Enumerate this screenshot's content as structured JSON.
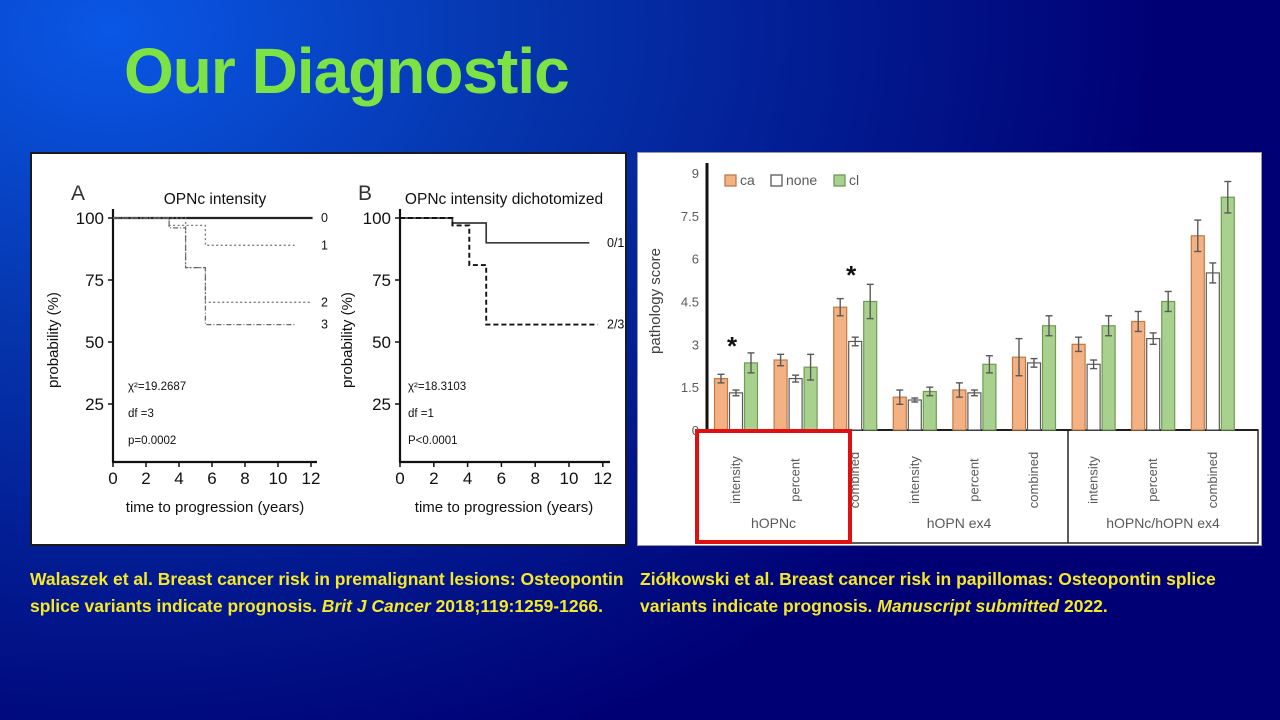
{
  "slide": {
    "title": "Our Diagnostic"
  },
  "citations": {
    "left": {
      "normal1": "Walaszek et al. Breast cancer risk in premalignant lesions: Osteopontin splice variants indicate prognosis. ",
      "italic": "Brit J Cancer",
      "normal2": " 2018;119:1259-1266."
    },
    "right": {
      "normal1": "Ziółkowski et al. Breast cancer risk in papillomas: Osteopontin splice variants indicate prognosis. ",
      "italic": "Manuscript submitted",
      "normal2": " 2022."
    }
  },
  "chart_data": [
    {
      "id": "kmA",
      "type": "line",
      "subtype": "kaplan-meier",
      "panel_label": "A",
      "title": "OPNc intensity",
      "xlabel": "time to progression (years)",
      "ylabel": "probability (%)",
      "xticks": [
        0,
        2,
        4,
        6,
        8,
        10,
        12
      ],
      "yticks": [
        100,
        75,
        50,
        25
      ],
      "xlim": [
        0,
        12.3
      ],
      "ylim": [
        0,
        100
      ],
      "stats": [
        "χ²=19.2687",
        "df =3",
        "p=0.0002"
      ],
      "series": [
        {
          "name": "0",
          "style": "solid-black",
          "points": [
            [
              0,
              100
            ],
            [
              12.1,
              100
            ]
          ]
        },
        {
          "name": "1",
          "style": "dotted-gray",
          "points": [
            [
              0,
              100
            ],
            [
              3.4,
              100
            ],
            [
              3.4,
              97
            ],
            [
              5.6,
              97
            ],
            [
              5.6,
              89
            ],
            [
              11.0,
              89
            ]
          ]
        },
        {
          "name": "2",
          "style": "dotted-gray",
          "points": [
            [
              0,
              100
            ],
            [
              4.4,
              100
            ],
            [
              4.4,
              80
            ],
            [
              5.6,
              80
            ],
            [
              5.6,
              66
            ],
            [
              12.0,
              66
            ]
          ]
        },
        {
          "name": "3",
          "style": "dashdot-gray",
          "points": [
            [
              0,
              100
            ],
            [
              3.4,
              100
            ],
            [
              3.4,
              96
            ],
            [
              4.4,
              96
            ],
            [
              4.4,
              80
            ],
            [
              5.6,
              80
            ],
            [
              5.6,
              57
            ],
            [
              11.0,
              57
            ]
          ]
        }
      ]
    },
    {
      "id": "kmB",
      "type": "line",
      "subtype": "kaplan-meier",
      "panel_label": "B",
      "title": "OPNc intensity dichotomized",
      "xlabel": "time to progression (years)",
      "ylabel": "probability (%)",
      "xticks": [
        0,
        2,
        4,
        6,
        8,
        10,
        12
      ],
      "yticks": [
        100,
        75,
        50,
        25
      ],
      "xlim": [
        0,
        12.3
      ],
      "ylim": [
        0,
        100
      ],
      "stats": [
        "χ²=18.3103",
        "df =1",
        "P<0.0001"
      ],
      "series": [
        {
          "name": "0/1",
          "style": "solid-dark",
          "points": [
            [
              0,
              100
            ],
            [
              3.1,
              100
            ],
            [
              3.1,
              98
            ],
            [
              5.1,
              98
            ],
            [
              5.1,
              90
            ],
            [
              11.2,
              90
            ]
          ]
        },
        {
          "name": "2/3",
          "style": "dashed-black",
          "points": [
            [
              0,
              100
            ],
            [
              3.1,
              100
            ],
            [
              3.1,
              97
            ],
            [
              4.1,
              97
            ],
            [
              4.1,
              81
            ],
            [
              5.1,
              81
            ],
            [
              5.1,
              57
            ],
            [
              11.7,
              57
            ]
          ]
        }
      ]
    },
    {
      "id": "bars",
      "type": "bar",
      "ylabel": "pathology score",
      "yticks": [
        0,
        1.5,
        3,
        4.5,
        6,
        7.5,
        9
      ],
      "ylim": [
        0,
        9
      ],
      "legend": [
        {
          "name": "ca",
          "fill": "#F4B183",
          "stroke": "#C07A45"
        },
        {
          "name": "none",
          "fill": "#FFFFFF",
          "stroke": "#595959"
        },
        {
          "name": "cl",
          "fill": "#A9D18E",
          "stroke": "#6F9B53"
        }
      ],
      "highlight_color": "#E01010",
      "sections": [
        {
          "name": "hOPNc",
          "highlighted": true,
          "groups": [
            {
              "label": "intensity",
              "ca": 1.8,
              "none": 1.3,
              "cl": 2.35,
              "ca_err": 0.15,
              "none_err": 0.1,
              "cl_err": 0.35,
              "star_y": 2.9
            },
            {
              "label": "percent",
              "ca": 2.45,
              "none": 1.8,
              "cl": 2.2,
              "ca_err": 0.2,
              "none_err": 0.12,
              "cl_err": 0.45
            },
            {
              "label": "combined",
              "ca": 4.3,
              "none": 3.1,
              "cl": 4.5,
              "ca_err": 0.3,
              "none_err": 0.15,
              "cl_err": 0.6,
              "star_y": 5.4
            }
          ]
        },
        {
          "name": "hOPN ex4",
          "highlighted": false,
          "groups": [
            {
              "label": "intensity",
              "ca": 1.15,
              "none": 1.05,
              "cl": 1.35,
              "ca_err": 0.25,
              "none_err": 0.07,
              "cl_err": 0.15
            },
            {
              "label": "percent",
              "ca": 1.4,
              "none": 1.3,
              "cl": 2.3,
              "ca_err": 0.25,
              "none_err": 0.1,
              "cl_err": 0.3
            },
            {
              "label": "combined",
              "ca": 2.55,
              "none": 2.35,
              "cl": 3.65,
              "ca_err": 0.65,
              "none_err": 0.15,
              "cl_err": 0.35
            }
          ]
        },
        {
          "name": "hOPNc/hOPN ex4",
          "highlighted": false,
          "groups": [
            {
              "label": "intensity",
              "ca": 3.0,
              "none": 2.3,
              "cl": 3.65,
              "ca_err": 0.25,
              "none_err": 0.15,
              "cl_err": 0.35
            },
            {
              "label": "percent",
              "ca": 3.8,
              "none": 3.2,
              "cl": 4.5,
              "ca_err": 0.35,
              "none_err": 0.2,
              "cl_err": 0.35
            },
            {
              "label": "combined",
              "ca": 6.8,
              "none": 5.5,
              "cl": 8.15,
              "ca_err": 0.55,
              "none_err": 0.35,
              "cl_err": 0.55
            }
          ]
        }
      ]
    }
  ]
}
